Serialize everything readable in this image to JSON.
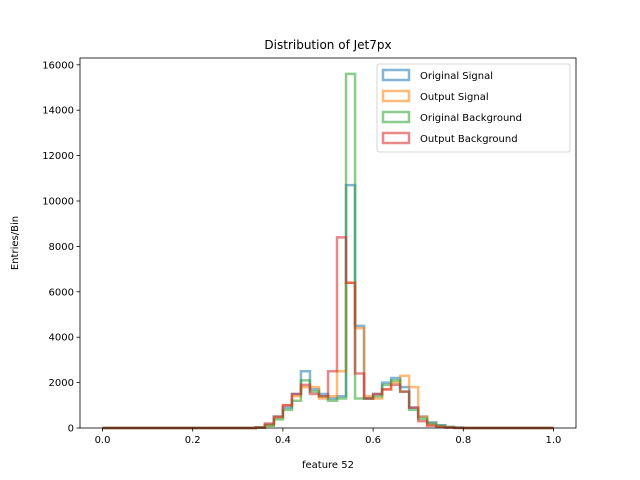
{
  "chart_data": {
    "type": "step-histogram",
    "title": "Distribution of Jet7px",
    "xlabel": "feature 52",
    "ylabel": "Entries/Bin",
    "xlim": [
      -0.05,
      1.05
    ],
    "ylim": [
      0,
      16300
    ],
    "xticks": [
      0.0,
      0.2,
      0.4,
      0.6,
      0.8,
      1.0
    ],
    "xtick_labels": [
      "0.0",
      "0.2",
      "0.4",
      "0.6",
      "0.8",
      "1.0"
    ],
    "yticks": [
      0,
      2000,
      4000,
      6000,
      8000,
      10000,
      12000,
      14000,
      16000
    ],
    "ytick_labels": [
      "0",
      "2000",
      "4000",
      "6000",
      "8000",
      "10000",
      "12000",
      "14000",
      "16000"
    ],
    "grid": false,
    "legend_position": "top-right",
    "bin_range": [
      0.0,
      1.0
    ],
    "bin_count": 50,
    "series": [
      {
        "name": "Original Signal",
        "color": "#1f77b4",
        "values": [
          0,
          0,
          0,
          0,
          0,
          0,
          0,
          0,
          0,
          0,
          0,
          0,
          0,
          0,
          0,
          0,
          0,
          30,
          150,
          500,
          900,
          1500,
          2500,
          1700,
          1500,
          1300,
          1400,
          10700,
          4500,
          1300,
          1500,
          2000,
          2200,
          1800,
          900,
          500,
          250,
          120,
          50,
          20,
          0,
          0,
          0,
          0,
          0,
          0,
          0,
          0,
          0,
          0
        ]
      },
      {
        "name": "Output Signal",
        "color": "#ff7f0e",
        "values": [
          0,
          0,
          0,
          0,
          0,
          0,
          0,
          0,
          0,
          0,
          0,
          0,
          0,
          0,
          0,
          0,
          0,
          20,
          120,
          450,
          1000,
          1400,
          1800,
          1800,
          1300,
          1400,
          2500,
          6400,
          4400,
          1400,
          1300,
          1700,
          2000,
          2300,
          1800,
          500,
          150,
          60,
          20,
          10,
          0,
          0,
          0,
          0,
          0,
          0,
          0,
          0,
          0,
          0
        ]
      },
      {
        "name": "Original Background",
        "color": "#2ca02c",
        "values": [
          0,
          0,
          0,
          0,
          0,
          0,
          0,
          0,
          0,
          0,
          0,
          0,
          0,
          0,
          0,
          0,
          0,
          20,
          100,
          380,
          800,
          1200,
          2100,
          1600,
          1400,
          1200,
          1300,
          15600,
          1300,
          1300,
          1400,
          1900,
          2100,
          1600,
          800,
          400,
          200,
          100,
          40,
          10,
          0,
          0,
          0,
          0,
          0,
          0,
          0,
          0,
          0,
          0
        ]
      },
      {
        "name": "Output Background",
        "color": "#d62728",
        "values": [
          0,
          0,
          0,
          0,
          0,
          0,
          0,
          0,
          0,
          0,
          0,
          0,
          0,
          0,
          0,
          0,
          0,
          15,
          200,
          500,
          1000,
          1500,
          1900,
          1500,
          1400,
          2500,
          8400,
          6400,
          2400,
          1300,
          1500,
          1700,
          1900,
          1600,
          900,
          300,
          100,
          50,
          20,
          0,
          0,
          0,
          0,
          0,
          0,
          0,
          0,
          0,
          0,
          0
        ]
      }
    ]
  }
}
